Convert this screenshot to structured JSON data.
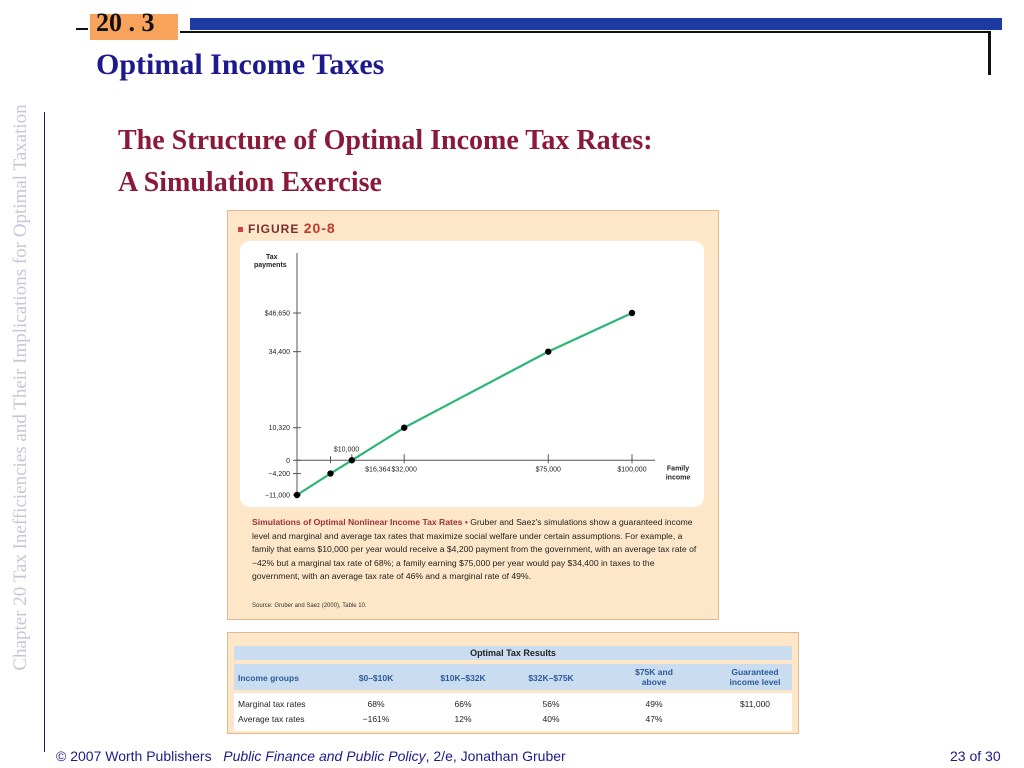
{
  "sidebar": {
    "text": "Chapter 20  Tax Inefficiencies and Their Implications for Optimal Taxation"
  },
  "header": {
    "section": "20 . 3",
    "title": "Optimal Income Taxes"
  },
  "slide": {
    "subtitle_line1": "The Structure of Optimal Income Tax Rates:",
    "subtitle_line2": "A Simulation Exercise"
  },
  "figure": {
    "label_prefix": "FIGURE",
    "label_number": "20-8",
    "caption_lead": "Simulations of Optimal Nonlinear Income Tax Rates •",
    "caption_body": " Gruber and Saez's simulations show a guaranteed income level and marginal and average tax rates that maximize social welfare under certain assumptions. For example, a family that earns $10,000 per year would receive a $4,200 payment from the government, with an average tax rate of −42% but a marginal tax rate of 68%; a family earning $75,000 per year would pay $34,400 in taxes to the government, with an average tax rate of 46% and a marginal rate of 49%.",
    "source": "Source: Gruber and Saez (2000), Table 10."
  },
  "chart_data": {
    "type": "line",
    "ylabel_line1": "Tax",
    "ylabel_line2": "payments",
    "xlabel_line1": "Family",
    "xlabel_line2": "income",
    "x": [
      0,
      10000,
      16364,
      32000,
      75000,
      100000
    ],
    "y": [
      -11000,
      -4200,
      0,
      10320,
      34400,
      46650
    ],
    "x_tick_labels": [
      "$16,364",
      "$32,000",
      "$75,000",
      "$100,000"
    ],
    "x_tick_values": [
      16364,
      32000,
      75000,
      100000
    ],
    "x_annotation": "$10,000",
    "y_tick_labels": [
      "$46,650",
      "34,400",
      "10,320",
      "0",
      "−4,200",
      "−11,000"
    ],
    "y_tick_values": [
      46650,
      34400,
      10320,
      0,
      -4200,
      -11000
    ],
    "xlim": [
      0,
      100000
    ],
    "ylim": [
      -11000,
      46650
    ],
    "line_color": "#2bb673",
    "point_color": "#000000"
  },
  "table": {
    "title": "Optimal Tax Results",
    "headers": [
      "Income groups",
      "$0–$10K",
      "$10K–$32K",
      "$32K–$75K",
      "$75K and above",
      "Guaranteed income level"
    ],
    "rows": [
      [
        "Marginal tax rates",
        "68%",
        "66%",
        "56%",
        "49%",
        "$11,000"
      ],
      [
        "Average tax rates",
        "−161%",
        "12%",
        "40%",
        "47%",
        ""
      ]
    ]
  },
  "footer": {
    "copyright": "© 2007 Worth Publishers",
    "book": "Public Finance and Public Policy",
    "edition": ", 2/e, Jonathan Gruber",
    "page": "23 of 30"
  }
}
